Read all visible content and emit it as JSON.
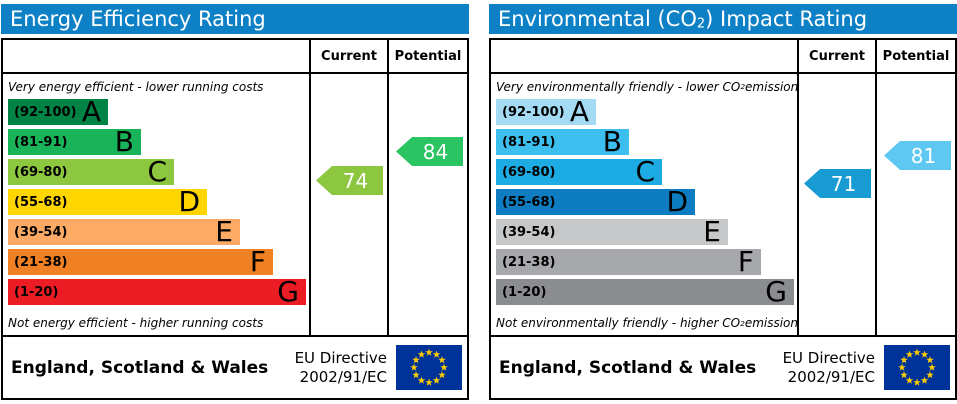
{
  "colors": {
    "header_bg": "#0e80c6",
    "header_text": "#ffffff",
    "border": "#000000",
    "eu_flag_bg": "#003399",
    "eu_flag_star": "#ffcc00"
  },
  "shared": {
    "columns": {
      "current": "Current",
      "potential": "Potential"
    },
    "bands": [
      {
        "letter": "A",
        "range_label": "(92-100)",
        "min": 92,
        "max": 100
      },
      {
        "letter": "B",
        "range_label": "(81-91)",
        "min": 81,
        "max": 91
      },
      {
        "letter": "C",
        "range_label": "(69-80)",
        "min": 69,
        "max": 80
      },
      {
        "letter": "D",
        "range_label": "(55-68)",
        "min": 55,
        "max": 68
      },
      {
        "letter": "E",
        "range_label": "(39-54)",
        "min": 39,
        "max": 54
      },
      {
        "letter": "F",
        "range_label": "(21-38)",
        "min": 21,
        "max": 38
      },
      {
        "letter": "G",
        "range_label": "(1-20)",
        "min": 1,
        "max": 20
      }
    ],
    "footer": {
      "region": "England, Scotland & Wales",
      "directive_line1": "EU Directive",
      "directive_line2": "2002/91/EC"
    }
  },
  "energy_panel": {
    "title_parts": [
      "Energy Efficiency Rating",
      "",
      ""
    ],
    "caption_top_parts": [
      "Very energy efficient - lower running costs",
      "",
      ""
    ],
    "caption_bottom_parts": [
      "Not energy efficient - higher running costs",
      "",
      ""
    ],
    "band_colors": [
      "#008445",
      "#19b459",
      "#8dc63f",
      "#ffd500",
      "#fcaa65",
      "#ef8023",
      "#ec1c24"
    ],
    "current": {
      "value": 74,
      "color": "#8dc63f"
    },
    "potential": {
      "value": 84,
      "color": "#2bc462"
    }
  },
  "co2_panel": {
    "title_parts": [
      "Environmental (CO",
      "2",
      ") Impact Rating"
    ],
    "caption_top_parts": [
      "Very environmentally friendly - lower CO",
      "2",
      " emissions"
    ],
    "caption_bottom_parts": [
      "Not environmentally friendly - higher CO",
      "2",
      " emissions"
    ],
    "band_colors": [
      "#a4daf4",
      "#3cbeef",
      "#1cabe3",
      "#0d7cc0",
      "#c6c7c9",
      "#a6a8ab",
      "#8a8c8f"
    ],
    "current": {
      "value": 71,
      "color": "#189ad2"
    },
    "potential": {
      "value": 81,
      "color": "#5fc8f2"
    }
  },
  "chart_data": [
    {
      "type": "bar",
      "title": "Energy Efficiency Rating",
      "categories": [
        "A (92-100)",
        "B (81-91)",
        "C (69-80)",
        "D (55-68)",
        "E (39-54)",
        "F (21-38)",
        "G (1-20)"
      ],
      "band_colors": [
        "#008445",
        "#19b459",
        "#8dc63f",
        "#ffd500",
        "#fcaa65",
        "#ef8023",
        "#ec1c24"
      ],
      "series": [
        {
          "name": "Current",
          "values": [
            74
          ],
          "band": "C",
          "color": "#8dc63f"
        },
        {
          "name": "Potential",
          "values": [
            84
          ],
          "band": "B",
          "color": "#2bc462"
        }
      ],
      "scale_range": [
        1,
        100
      ],
      "annotations": [
        "Very energy efficient - lower running costs",
        "Not energy efficient - higher running costs",
        "England, Scotland & Wales",
        "EU Directive 2002/91/EC"
      ],
      "legend_position": "top-right-columns"
    },
    {
      "type": "bar",
      "title": "Environmental (CO2) Impact Rating",
      "categories": [
        "A (92-100)",
        "B (81-91)",
        "C (69-80)",
        "D (55-68)",
        "E (39-54)",
        "F (21-38)",
        "G (1-20)"
      ],
      "band_colors": [
        "#a4daf4",
        "#3cbeef",
        "#1cabe3",
        "#0d7cc0",
        "#c6c7c9",
        "#a6a8ab",
        "#8a8c8f"
      ],
      "series": [
        {
          "name": "Current",
          "values": [
            71
          ],
          "band": "C",
          "color": "#189ad2"
        },
        {
          "name": "Potential",
          "values": [
            81
          ],
          "band": "B",
          "color": "#5fc8f2"
        }
      ],
      "scale_range": [
        1,
        100
      ],
      "annotations": [
        "Very environmentally friendly - lower CO2 emissions",
        "Not environmentally friendly - higher CO2 emissions",
        "England, Scotland & Wales",
        "EU Directive 2002/91/EC"
      ],
      "legend_position": "top-right-columns"
    }
  ]
}
